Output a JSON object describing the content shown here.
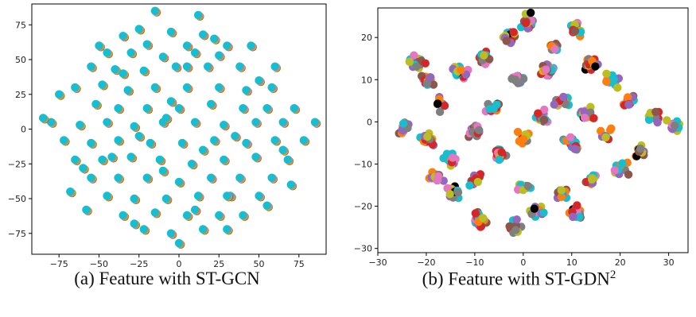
{
  "chart_data": [
    {
      "type": "scatter",
      "caption": "(a) Feature with ST-GCN",
      "xlim": [
        -92,
        92
      ],
      "ylim": [
        -90,
        90
      ],
      "x_ticks": [
        -75,
        -50,
        -25,
        0,
        25,
        50,
        75
      ],
      "y_ticks": [
        -75,
        -50,
        -25,
        0,
        25,
        50,
        75
      ],
      "grid": false,
      "colors": [
        "#17becf",
        "#8c564b",
        "#bcbd22",
        "#ff7f0e",
        "#e377c2"
      ],
      "points": [
        [
          -15,
          85
        ],
        [
          12,
          82
        ],
        [
          -25,
          72
        ],
        [
          -5,
          70
        ],
        [
          15,
          68
        ],
        [
          -35,
          67
        ],
        [
          5,
          60
        ],
        [
          -20,
          61
        ],
        [
          30,
          60
        ],
        [
          45,
          60
        ],
        [
          -45,
          55
        ],
        [
          -30,
          55
        ],
        [
          -10,
          52
        ],
        [
          10,
          55
        ],
        [
          25,
          53
        ],
        [
          -55,
          45
        ],
        [
          -40,
          43
        ],
        [
          -22,
          42
        ],
        [
          -2,
          45
        ],
        [
          18,
          45
        ],
        [
          38,
          45
        ],
        [
          60,
          45
        ],
        [
          -65,
          30
        ],
        [
          -48,
          32
        ],
        [
          -32,
          28
        ],
        [
          -15,
          30
        ],
        [
          5,
          30
        ],
        [
          25,
          30
        ],
        [
          42,
          28
        ],
        [
          58,
          30
        ],
        [
          -52,
          18
        ],
        [
          -38,
          15
        ],
        [
          -20,
          15
        ],
        [
          0,
          15
        ],
        [
          20,
          18
        ],
        [
          40,
          15
        ],
        [
          55,
          15
        ],
        [
          72,
          15
        ],
        [
          -80,
          5
        ],
        [
          -62,
          3
        ],
        [
          -45,
          5
        ],
        [
          -28,
          2
        ],
        [
          -10,
          5
        ],
        [
          10,
          5
        ],
        [
          28,
          3
        ],
        [
          48,
          5
        ],
        [
          65,
          5
        ],
        [
          85,
          5
        ],
        [
          -72,
          -8
        ],
        [
          -55,
          -10
        ],
        [
          -38,
          -8
        ],
        [
          -18,
          -10
        ],
        [
          2,
          -10
        ],
        [
          22,
          -8
        ],
        [
          42,
          -10
        ],
        [
          60,
          -8
        ],
        [
          78,
          -8
        ],
        [
          -65,
          -22
        ],
        [
          -48,
          -22
        ],
        [
          -30,
          -20
        ],
        [
          -12,
          -22
        ],
        [
          8,
          -25
        ],
        [
          28,
          -22
        ],
        [
          48,
          -20
        ],
        [
          68,
          -22
        ],
        [
          -55,
          -35
        ],
        [
          -38,
          -35
        ],
        [
          -20,
          -35
        ],
        [
          0,
          -38
        ],
        [
          20,
          -35
        ],
        [
          38,
          -35
        ],
        [
          58,
          -35
        ],
        [
          -45,
          -48
        ],
        [
          -28,
          -50
        ],
        [
          -8,
          -50
        ],
        [
          12,
          -48
        ],
        [
          32,
          -48
        ],
        [
          50,
          -48
        ],
        [
          -35,
          -62
        ],
        [
          -15,
          -60
        ],
        [
          5,
          -62
        ],
        [
          25,
          -62
        ],
        [
          40,
          -62
        ],
        [
          -22,
          -72
        ],
        [
          -5,
          -75
        ],
        [
          15,
          -72
        ],
        [
          30,
          -72
        ],
        [
          0,
          -82
        ],
        [
          -85,
          8
        ],
        [
          -68,
          -45
        ],
        [
          -58,
          -58
        ],
        [
          70,
          -40
        ],
        [
          -75,
          25
        ],
        [
          65,
          -15
        ],
        [
          -5,
          20
        ],
        [
          35,
          -5
        ],
        [
          -35,
          40
        ],
        [
          15,
          -15
        ],
        [
          -25,
          -5
        ],
        [
          50,
          35
        ],
        [
          -60,
          -28
        ],
        [
          5,
          45
        ],
        [
          -10,
          -30
        ],
        [
          22,
          65
        ],
        [
          -42,
          -20
        ],
        [
          30,
          -48
        ],
        [
          -8,
          8
        ],
        [
          10,
          -58
        ],
        [
          55,
          -55
        ],
        [
          -50,
          60
        ],
        [
          -28,
          -68
        ]
      ]
    },
    {
      "type": "scatter",
      "caption": "(b) Feature with ST-GDN",
      "caption_sup": "2",
      "xlim": [
        -30,
        34
      ],
      "ylim": [
        -31,
        27
      ],
      "x_ticks": [
        -30,
        -20,
        -10,
        0,
        10,
        20,
        30
      ],
      "y_ticks": [
        -30,
        -20,
        -10,
        0,
        10,
        20
      ],
      "grid": false,
      "colors": [
        "#17becf",
        "#7f7f7f",
        "#bcbd22",
        "#e377c2",
        "#9467bd",
        "#8c564b",
        "#000000",
        "#ff7f0e",
        "#d62728"
      ]
    }
  ]
}
